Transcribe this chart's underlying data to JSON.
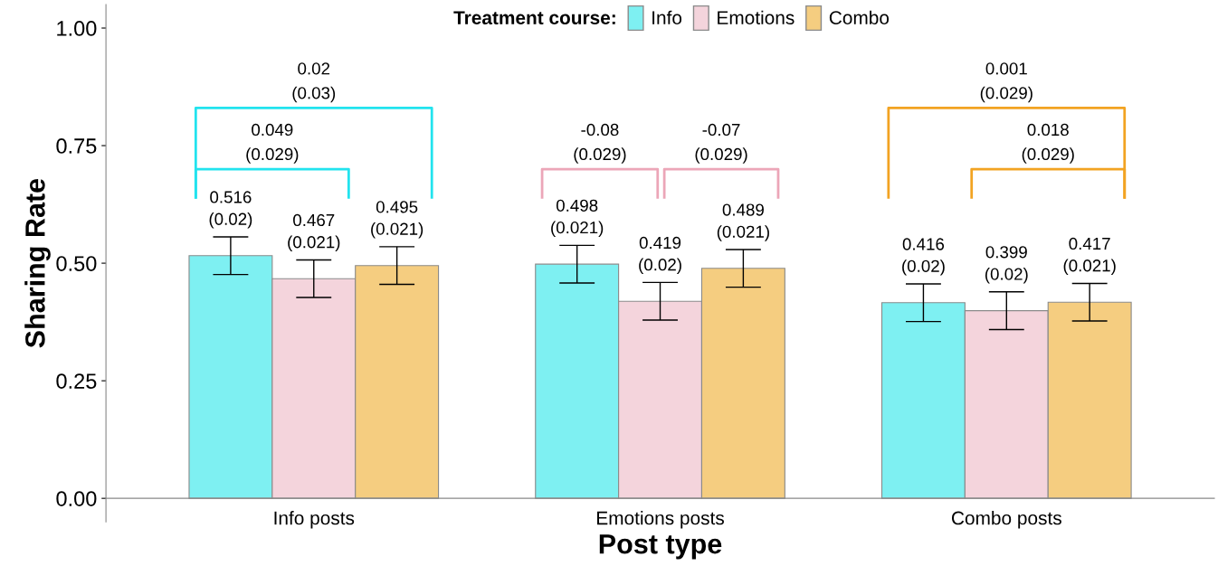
{
  "chart_data": {
    "type": "bar",
    "xlabel": "Post type",
    "ylabel": "Sharing Rate",
    "legend_title": "Treatment course:",
    "categories": [
      "Info posts",
      "Emotions posts",
      "Combo posts"
    ],
    "series": [
      {
        "name": "Info",
        "color": "#7ef0f2",
        "values": [
          0.516,
          0.498,
          0.416
        ],
        "errors": [
          0.04,
          0.04,
          0.04
        ],
        "value_labels": [
          "0.516\n(0.02)",
          "0.498\n(0.021)",
          "0.416\n(0.02)"
        ]
      },
      {
        "name": "Emotions",
        "color": "#f4d4dc",
        "values": [
          0.467,
          0.419,
          0.399
        ],
        "errors": [
          0.04,
          0.04,
          0.04
        ],
        "value_labels": [
          "0.467\n(0.021)",
          "0.419\n(0.02)",
          "0.399\n(0.02)"
        ]
      },
      {
        "name": "Combo",
        "color": "#f5cd80",
        "values": [
          0.495,
          0.489,
          0.417
        ],
        "errors": [
          0.04,
          0.04,
          0.04
        ],
        "value_labels": [
          "0.495\n(0.021)",
          "0.489\n(0.021)",
          "0.417\n(0.021)"
        ]
      }
    ],
    "ylim": [
      -0.05,
      1.05
    ],
    "yticks": [
      {
        "value": 0,
        "label": "0.00"
      },
      {
        "value": 0.25,
        "label": "0.25"
      },
      {
        "value": 0.5,
        "label": "0.50"
      },
      {
        "value": 0.75,
        "label": "0.75"
      },
      {
        "value": 1,
        "label": "1.00"
      }
    ],
    "grid": false,
    "legend": "top",
    "annotations": [
      "0.02\n(0.03)",
      "0.049\n(0.029)",
      "-0.08\n(0.029)",
      "-0.07\n(0.029)",
      "0.001\n(0.029)",
      "0.018\n(0.029)"
    ]
  }
}
